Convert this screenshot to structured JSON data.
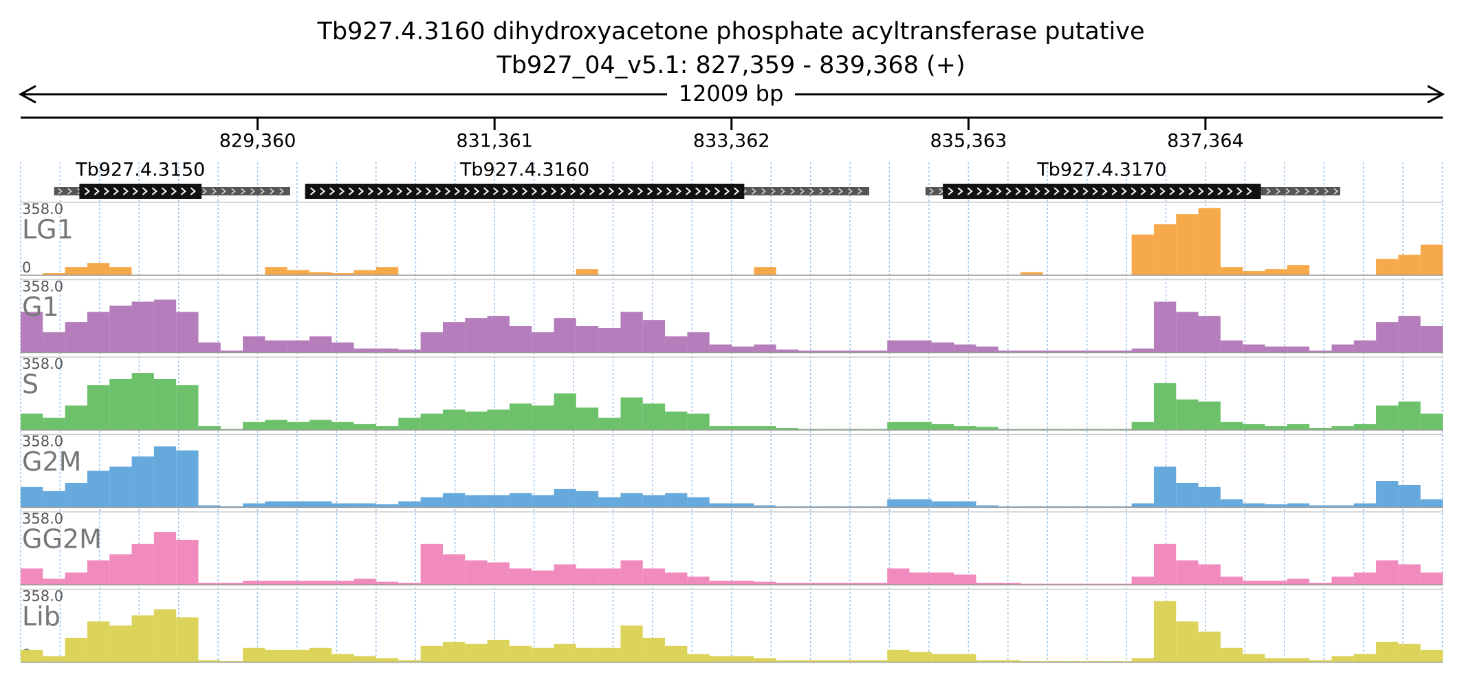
{
  "chart_data": {
    "type": "bar",
    "title": "Tb927.4.3160  dihydroxyacetone phosphate acyltransferase  putative",
    "subtitle": "Tb927_04_v5.1: 827,359 - 839,368 (+)",
    "span_label": "12009 bp",
    "xlim": [
      827359,
      839368
    ],
    "xticks": [
      {
        "value": 829360,
        "label": "829,360"
      },
      {
        "value": 831361,
        "label": "831,361"
      },
      {
        "value": 833362,
        "label": "833,362"
      },
      {
        "value": 835363,
        "label": "835,363"
      },
      {
        "value": 837364,
        "label": "837,364"
      }
    ],
    "ylim": [
      0,
      358
    ],
    "yticks": [
      0,
      {
        "value": 358,
        "label": "358.0"
      }
    ],
    "genes": [
      {
        "name": "Tb927.4.3150",
        "start": 827642,
        "end": 829635,
        "cds_start": 827855,
        "cds_end": 828887
      },
      {
        "name": "Tb927.4.3160",
        "start": 829761,
        "end": 834525,
        "cds_start": 829761,
        "cds_end": 833470
      },
      {
        "name": "Tb927.4.3170",
        "start": 835000,
        "end": 838502,
        "cds_start": 835147,
        "cds_end": 837832
      }
    ],
    "series": [
      {
        "name": "LG1",
        "color": "#f5a94a",
        "values": [
          0,
          10,
          40,
          60,
          40,
          0,
          0,
          0,
          0,
          0,
          0,
          40,
          25,
          15,
          10,
          25,
          40,
          0,
          0,
          0,
          0,
          0,
          0,
          0,
          0,
          30,
          0,
          0,
          0,
          0,
          0,
          0,
          0,
          40,
          0,
          0,
          0,
          0,
          0,
          0,
          0,
          0,
          0,
          0,
          0,
          15,
          0,
          0,
          0,
          0,
          200,
          250,
          300,
          330,
          40,
          20,
          30,
          50,
          0,
          0,
          0,
          80,
          100,
          150
        ]
      },
      {
        "name": "G1",
        "color": "#b57dbb",
        "values": [
          200,
          100,
          150,
          200,
          230,
          250,
          260,
          200,
          50,
          10,
          80,
          60,
          60,
          80,
          50,
          20,
          20,
          15,
          100,
          150,
          170,
          180,
          130,
          100,
          170,
          130,
          120,
          200,
          160,
          80,
          100,
          40,
          30,
          40,
          15,
          10,
          10,
          10,
          10,
          60,
          60,
          50,
          40,
          30,
          10,
          10,
          10,
          10,
          10,
          10,
          20,
          250,
          200,
          180,
          60,
          40,
          30,
          30,
          10,
          40,
          60,
          150,
          180,
          130
        ]
      },
      {
        "name": "S",
        "color": "#6cc16a",
        "values": [
          80,
          60,
          120,
          220,
          250,
          280,
          250,
          220,
          20,
          5,
          40,
          50,
          40,
          50,
          40,
          30,
          20,
          60,
          80,
          100,
          90,
          100,
          130,
          120,
          180,
          110,
          60,
          160,
          130,
          90,
          80,
          20,
          20,
          20,
          10,
          5,
          5,
          5,
          5,
          40,
          40,
          30,
          20,
          15,
          5,
          5,
          5,
          5,
          5,
          5,
          40,
          230,
          150,
          140,
          40,
          30,
          20,
          30,
          10,
          20,
          30,
          120,
          140,
          80
        ]
      },
      {
        "name": "G2M",
        "color": "#66a9dc",
        "values": [
          100,
          80,
          120,
          180,
          200,
          250,
          300,
          280,
          10,
          5,
          20,
          30,
          30,
          30,
          20,
          20,
          15,
          30,
          50,
          70,
          60,
          60,
          70,
          60,
          90,
          80,
          50,
          70,
          60,
          70,
          50,
          20,
          20,
          10,
          5,
          5,
          5,
          5,
          5,
          40,
          40,
          30,
          30,
          10,
          5,
          5,
          5,
          5,
          5,
          5,
          20,
          200,
          120,
          100,
          40,
          20,
          15,
          20,
          10,
          10,
          20,
          130,
          110,
          40
        ]
      },
      {
        "name": "GG2M",
        "color": "#f18bbd",
        "values": [
          80,
          30,
          60,
          120,
          150,
          200,
          260,
          220,
          10,
          10,
          20,
          20,
          20,
          20,
          20,
          30,
          15,
          10,
          200,
          150,
          120,
          110,
          80,
          70,
          100,
          80,
          80,
          120,
          80,
          60,
          40,
          20,
          20,
          15,
          10,
          10,
          10,
          10,
          10,
          80,
          60,
          60,
          50,
          10,
          10,
          5,
          5,
          5,
          5,
          5,
          40,
          200,
          120,
          100,
          40,
          20,
          20,
          30,
          10,
          40,
          60,
          120,
          100,
          60
        ]
      },
      {
        "name": "Lib",
        "color": "#dcd45a",
        "values": [
          60,
          30,
          120,
          200,
          180,
          230,
          260,
          220,
          10,
          5,
          70,
          60,
          60,
          70,
          40,
          30,
          20,
          10,
          80,
          100,
          90,
          110,
          80,
          70,
          90,
          70,
          70,
          180,
          120,
          80,
          40,
          30,
          30,
          20,
          10,
          10,
          10,
          10,
          10,
          60,
          50,
          40,
          40,
          10,
          10,
          5,
          5,
          5,
          5,
          5,
          20,
          300,
          200,
          150,
          70,
          40,
          20,
          20,
          10,
          30,
          40,
          100,
          90,
          60
        ]
      }
    ]
  }
}
